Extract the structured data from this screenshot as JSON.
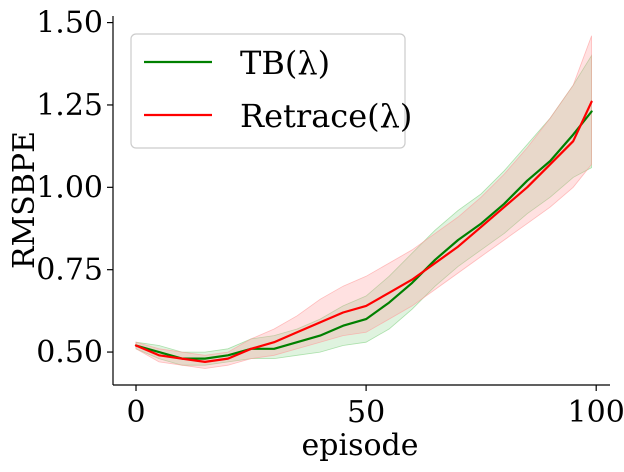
{
  "chart_data": {
    "type": "line",
    "title": "",
    "xlabel": "episode",
    "ylabel": "RMSBPE",
    "xlim": [
      -5,
      103
    ],
    "ylim": [
      0.4,
      1.52
    ],
    "x_ticks": [
      0,
      50,
      100
    ],
    "x_tick_labels": [
      "0",
      "50",
      "100"
    ],
    "y_ticks": [
      0.5,
      0.75,
      1.0,
      1.25,
      1.5
    ],
    "y_tick_labels": [
      "0.50",
      "0.75",
      "1.00",
      "1.25",
      "1.50"
    ],
    "legend_position": "top-left",
    "grid": false,
    "series": [
      {
        "name": "TB(λ)",
        "color": "#008000",
        "band_color": "#7fd17f",
        "band_opacity": 0.25,
        "x": [
          0,
          5,
          10,
          15,
          20,
          25,
          30,
          35,
          40,
          45,
          50,
          55,
          60,
          65,
          70,
          75,
          80,
          85,
          90,
          95,
          99
        ],
        "y": [
          0.52,
          0.5,
          0.48,
          0.48,
          0.49,
          0.51,
          0.51,
          0.53,
          0.55,
          0.58,
          0.6,
          0.65,
          0.71,
          0.78,
          0.84,
          0.89,
          0.95,
          1.02,
          1.08,
          1.16,
          1.23
        ],
        "lower": [
          0.51,
          0.48,
          0.46,
          0.46,
          0.47,
          0.48,
          0.48,
          0.49,
          0.5,
          0.52,
          0.53,
          0.57,
          0.63,
          0.7,
          0.76,
          0.81,
          0.86,
          0.92,
          0.97,
          1.03,
          1.06
        ],
        "upper": [
          0.53,
          0.52,
          0.5,
          0.5,
          0.51,
          0.54,
          0.55,
          0.57,
          0.6,
          0.64,
          0.67,
          0.73,
          0.8,
          0.87,
          0.93,
          0.98,
          1.05,
          1.13,
          1.21,
          1.31,
          1.4
        ]
      },
      {
        "name": "Retrace(λ)",
        "color": "#ff0000",
        "band_color": "#ff9a9a",
        "band_opacity": 0.3,
        "x": [
          0,
          5,
          10,
          15,
          20,
          25,
          30,
          35,
          40,
          45,
          50,
          55,
          60,
          65,
          70,
          75,
          80,
          85,
          90,
          95,
          99
        ],
        "y": [
          0.52,
          0.49,
          0.48,
          0.47,
          0.48,
          0.51,
          0.53,
          0.56,
          0.59,
          0.62,
          0.64,
          0.68,
          0.72,
          0.77,
          0.82,
          0.88,
          0.94,
          1.0,
          1.07,
          1.14,
          1.26
        ],
        "lower": [
          0.51,
          0.47,
          0.46,
          0.45,
          0.46,
          0.48,
          0.49,
          0.51,
          0.53,
          0.55,
          0.56,
          0.6,
          0.64,
          0.69,
          0.74,
          0.79,
          0.84,
          0.89,
          0.94,
          1.0,
          1.07
        ],
        "upper": [
          0.53,
          0.51,
          0.5,
          0.49,
          0.5,
          0.54,
          0.57,
          0.61,
          0.66,
          0.7,
          0.73,
          0.77,
          0.81,
          0.86,
          0.91,
          0.97,
          1.04,
          1.12,
          1.21,
          1.31,
          1.46
        ]
      }
    ]
  }
}
